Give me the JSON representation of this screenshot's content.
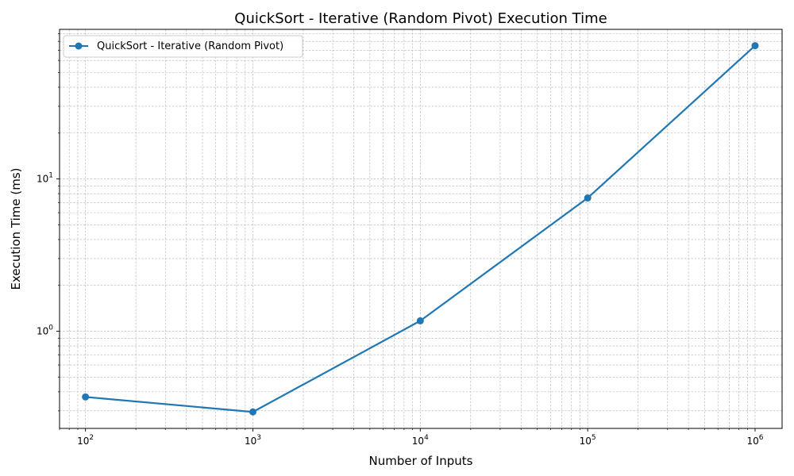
{
  "chart_data": {
    "type": "line",
    "title": "QuickSort - Iterative (Random Pivot) Execution Time",
    "xlabel": "Number of Inputs",
    "ylabel": "Execution Time (ms)",
    "x_scale": "log",
    "y_scale": "log",
    "xlim": [
      70,
      1450000
    ],
    "ylim": [
      0.23,
      96
    ],
    "x_ticks": [
      {
        "value": 100,
        "base": "10",
        "exp": "2"
      },
      {
        "value": 1000,
        "base": "10",
        "exp": "3"
      },
      {
        "value": 10000,
        "base": "10",
        "exp": "4"
      },
      {
        "value": 100000,
        "base": "10",
        "exp": "5"
      },
      {
        "value": 1000000,
        "base": "10",
        "exp": "6"
      }
    ],
    "y_ticks": [
      {
        "value": 1,
        "base": "10",
        "exp": "0"
      },
      {
        "value": 10,
        "base": "10",
        "exp": "1"
      }
    ],
    "grid": true,
    "legend_position": "top-left",
    "series": [
      {
        "name": "QuickSort - Iterative (Random Pivot)",
        "color": "#1f77b4",
        "marker": "circle",
        "x": [
          100,
          1000,
          10000,
          100000,
          1000000
        ],
        "y": [
          0.37,
          0.295,
          1.17,
          7.5,
          75
        ]
      }
    ]
  }
}
